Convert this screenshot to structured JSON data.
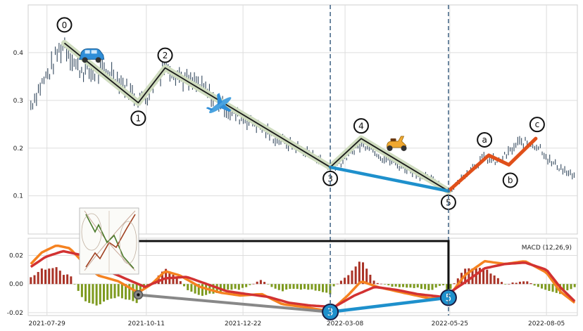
{
  "chart_data": [
    {
      "type": "candlestick",
      "panel": "price",
      "ylim": [
        0.02,
        0.5
      ],
      "yticks": [
        0.1,
        0.2,
        0.3,
        0.4
      ],
      "x_start": "2021-07-15",
      "x_end": "2022-08-28",
      "xticks": [
        "2021-07-29",
        "2021-10-11",
        "2021-12-22",
        "2022-03-08",
        "2022-05-25",
        "2022-08-05"
      ],
      "grid": true,
      "price_path": [
        [
          "2021-07-17",
          0.29
        ],
        [
          "2021-07-24",
          0.33
        ],
        [
          "2021-07-31",
          0.36
        ],
        [
          "2021-08-06",
          0.4
        ],
        [
          "2021-08-11",
          0.42
        ],
        [
          "2021-08-20",
          0.37
        ],
        [
          "2021-09-01",
          0.355
        ],
        [
          "2021-09-15",
          0.36
        ],
        [
          "2021-09-25",
          0.33
        ],
        [
          "2021-10-05",
          0.3
        ],
        [
          "2021-10-12",
          0.31
        ],
        [
          "2021-10-20",
          0.35
        ],
        [
          "2021-10-25",
          0.38
        ],
        [
          "2021-11-01",
          0.36
        ],
        [
          "2021-11-10",
          0.34
        ],
        [
          "2021-11-20",
          0.33
        ],
        [
          "2021-12-01",
          0.3
        ],
        [
          "2021-12-15",
          0.27
        ],
        [
          "2022-01-01",
          0.25
        ],
        [
          "2022-01-15",
          0.22
        ],
        [
          "2022-02-01",
          0.2
        ],
        [
          "2022-02-15",
          0.18
        ],
        [
          "2022-02-25",
          0.16
        ],
        [
          "2022-03-05",
          0.17
        ],
        [
          "2022-03-15",
          0.2
        ],
        [
          "2022-03-25",
          0.21
        ],
        [
          "2022-04-05",
          0.18
        ],
        [
          "2022-04-20",
          0.16
        ],
        [
          "2022-05-05",
          0.14
        ],
        [
          "2022-05-15",
          0.13
        ],
        [
          "2022-05-24",
          0.11
        ],
        [
          "2022-06-01",
          0.13
        ],
        [
          "2022-06-10",
          0.16
        ],
        [
          "2022-06-20",
          0.18
        ],
        [
          "2022-06-30",
          0.17
        ],
        [
          "2022-07-08",
          0.19
        ],
        [
          "2022-07-15",
          0.21
        ],
        [
          "2022-07-25",
          0.21
        ],
        [
          "2022-08-01",
          0.2
        ],
        [
          "2022-08-08",
          0.17
        ],
        [
          "2022-08-15",
          0.16
        ],
        [
          "2022-08-22",
          0.145
        ],
        [
          "2022-08-26",
          0.14
        ]
      ],
      "waves": [
        {
          "label": "0",
          "date": "2021-08-11",
          "value": 0.42
        },
        {
          "label": "1",
          "date": "2021-10-05",
          "value": 0.295
        },
        {
          "label": "2",
          "date": "2021-10-25",
          "value": 0.368
        },
        {
          "label": "3",
          "date": "2022-02-25",
          "value": 0.16
        },
        {
          "label": "4",
          "date": "2022-03-20",
          "value": 0.22
        },
        {
          "label": "5",
          "date": "2022-05-24",
          "value": 0.11
        }
      ],
      "corrective": [
        {
          "label": "a",
          "date": "2022-06-23",
          "value": 0.185
        },
        {
          "label": "b",
          "date": "2022-07-08",
          "value": 0.165
        },
        {
          "label": "c",
          "date": "2022-07-28",
          "value": 0.22
        }
      ],
      "divergence_line": {
        "from": {
          "date": "2022-02-25",
          "value": 0.16
        },
        "to": {
          "date": "2022-05-24",
          "value": 0.11
        }
      },
      "vlines": [
        "2022-02-25",
        "2022-05-24"
      ],
      "icons": [
        "car-icon",
        "plane-icon",
        "scooter-icon"
      ],
      "colors": {
        "candle": "#34495e",
        "wave": "#1a1a1a",
        "wave_halo": "#cfdcbf",
        "corrective": "#e0501a",
        "divergence": "#1e90cc",
        "vline": "#4a6a8a"
      }
    },
    {
      "type": "macd",
      "panel": "indicator",
      "title": "MACD (12,26,9)",
      "ylim": [
        -0.022,
        0.032
      ],
      "yticks": [
        -0.02,
        0.0,
        0.02
      ],
      "macd_line": [
        [
          "2021-07-17",
          0.014
        ],
        [
          "2021-07-25",
          0.022
        ],
        [
          "2021-08-05",
          0.027
        ],
        [
          "2021-08-15",
          0.025
        ],
        [
          "2021-08-25",
          0.015
        ],
        [
          "2021-09-05",
          0.006
        ],
        [
          "2021-09-20",
          0.002
        ],
        [
          "2021-10-05",
          -0.006
        ],
        [
          "2021-10-15",
          0.0
        ],
        [
          "2021-10-25",
          0.009
        ],
        [
          "2021-11-05",
          0.006
        ],
        [
          "2021-11-20",
          -0.002
        ],
        [
          "2021-12-05",
          -0.006
        ],
        [
          "2021-12-20",
          -0.008
        ],
        [
          "2022-01-05",
          -0.007
        ],
        [
          "2022-01-20",
          -0.014
        ],
        [
          "2022-02-05",
          -0.016
        ],
        [
          "2022-02-25",
          -0.019
        ],
        [
          "2022-03-10",
          -0.008
        ],
        [
          "2022-03-20",
          0.002
        ],
        [
          "2022-04-01",
          -0.002
        ],
        [
          "2022-04-20",
          -0.006
        ],
        [
          "2022-05-10",
          -0.01
        ],
        [
          "2022-05-24",
          -0.009
        ],
        [
          "2022-06-05",
          0.006
        ],
        [
          "2022-06-20",
          0.016
        ],
        [
          "2022-07-05",
          0.014
        ],
        [
          "2022-07-20",
          0.016
        ],
        [
          "2022-08-05",
          0.008
        ],
        [
          "2022-08-15",
          -0.005
        ],
        [
          "2022-08-26",
          -0.013
        ]
      ],
      "signal_line": [
        [
          "2021-07-17",
          0.012
        ],
        [
          "2021-07-28",
          0.019
        ],
        [
          "2021-08-10",
          0.023
        ],
        [
          "2021-08-25",
          0.02
        ],
        [
          "2021-09-10",
          0.01
        ],
        [
          "2021-09-25",
          0.004
        ],
        [
          "2021-10-10",
          -0.002
        ],
        [
          "2021-10-25",
          0.004
        ],
        [
          "2021-11-10",
          0.005
        ],
        [
          "2021-11-25",
          0.0
        ],
        [
          "2021-12-10",
          -0.005
        ],
        [
          "2021-12-25",
          -0.007
        ],
        [
          "2022-01-10",
          -0.009
        ],
        [
          "2022-01-25",
          -0.013
        ],
        [
          "2022-02-10",
          -0.015
        ],
        [
          "2022-02-28",
          -0.016
        ],
        [
          "2022-03-15",
          -0.008
        ],
        [
          "2022-03-30",
          -0.002
        ],
        [
          "2022-04-15",
          -0.004
        ],
        [
          "2022-05-01",
          -0.007
        ],
        [
          "2022-05-20",
          -0.009
        ],
        [
          "2022-06-05",
          0.001
        ],
        [
          "2022-06-20",
          0.011
        ],
        [
          "2022-07-05",
          0.014
        ],
        [
          "2022-07-20",
          0.015
        ],
        [
          "2022-08-05",
          0.01
        ],
        [
          "2022-08-15",
          -0.002
        ],
        [
          "2022-08-26",
          -0.012
        ]
      ],
      "histogram_bars": 150,
      "markers": [
        {
          "label": "3",
          "date": "2022-02-25",
          "value": -0.0195
        },
        {
          "label": "5",
          "date": "2022-05-24",
          "value": -0.0095
        },
        {
          "label": "",
          "date": "2021-10-05",
          "value": -0.0075
        }
      ],
      "colors": {
        "macd": "#f58220",
        "signal": "#d23232",
        "hist_pos": "#a93226",
        "hist_neg": "#7d9a1e",
        "marker_fill": "#1e90cc",
        "connector": "#888888"
      }
    }
  ]
}
